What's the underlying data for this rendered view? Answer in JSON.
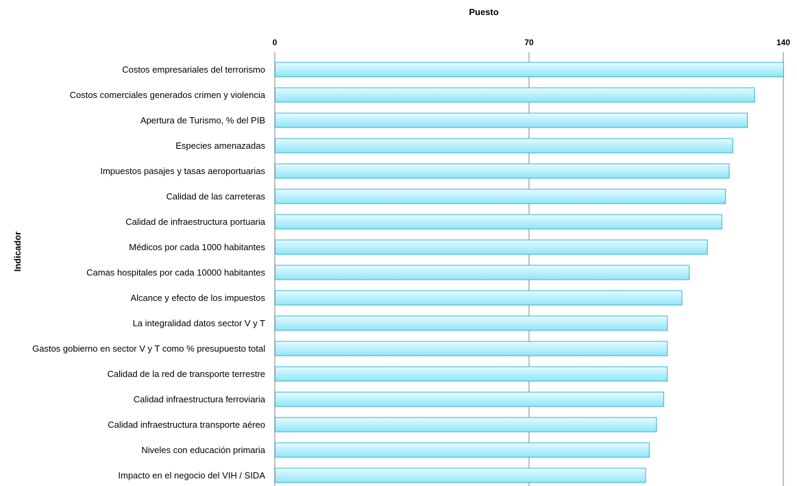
{
  "chart_data": {
    "type": "bar",
    "orientation": "horizontal",
    "xlabel": "Puesto",
    "ylabel": "Indicador",
    "xlim": [
      0,
      140
    ],
    "xticks": [
      0,
      70,
      140
    ],
    "grid": true,
    "categories": [
      "Costos empresariales del terrorismo",
      "Costos comerciales generados crimen y violencia",
      "Apertura de Turismo, % del PIB",
      "Especies amenazadas",
      "Impuestos pasajes y tasas aeroportuarias",
      "Calidad de las carreteras",
      "Calidad de infraestructura portuaria",
      "Médicos por cada 1000 habitantes",
      "Camas hospitales por cada 10000 habitantes",
      "Alcance y efecto de los impuestos",
      "La integralidad datos sector V y T",
      "Gastos gobierno en sector V y T como % presupuesto total",
      "Calidad de la red de transporte terrestre",
      "Calidad infraestructura ferroviaria",
      "Calidad infraestructura transporte aéreo",
      "Niveles con educación primaria",
      "Impacto en el negocio del VIH / SIDA"
    ],
    "values": [
      140,
      132,
      130,
      126,
      125,
      124,
      123,
      119,
      114,
      112,
      108,
      108,
      108,
      107,
      105,
      103,
      102
    ],
    "colors": {
      "bar_fill_light": "#e6fbff",
      "bar_fill_dark": "#8fe6f8",
      "bar_stroke": "#31b3cf",
      "grid": "#7f7f7f"
    }
  }
}
